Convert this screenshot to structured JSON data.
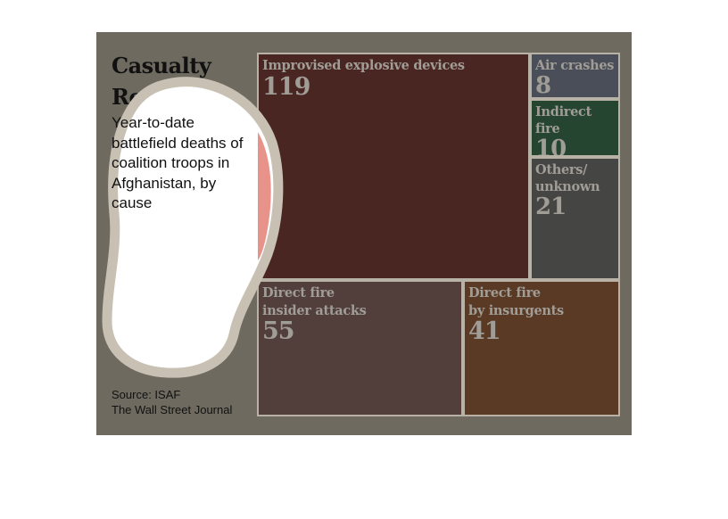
{
  "chart_data": {
    "type": "treemap",
    "title": "Casualty Report",
    "subtitle": "Year-to-date battlefield deaths of coalition troops in Afghanistan, by cause",
    "source": [
      "Source: ISAF",
      "The Wall Street Journal"
    ],
    "items": [
      {
        "label": "Improvised explosive devices",
        "value": 119,
        "color": "#4a2622"
      },
      {
        "label": "Air crashes",
        "value": 8,
        "color": "#4a4e58"
      },
      {
        "label": "Indirect fire",
        "value": 10,
        "color": "#254530"
      },
      {
        "label": "Others/\nunknown",
        "value": 21,
        "color": "#454544"
      },
      {
        "label": "Direct fire\ninsider attacks",
        "value": 55,
        "color": "#523f3c"
      },
      {
        "label": "Direct fire\nby insurgents",
        "value": 41,
        "color": "#5a3a24"
      }
    ]
  },
  "colors": {
    "card_background": "#6e6a60",
    "tile_border": "#b8b2a6",
    "tile_text": "#a09c96",
    "blob_fill": "#ffffff",
    "blob_outline": "#c7c0b3",
    "blob_highlight": "#e48076"
  }
}
